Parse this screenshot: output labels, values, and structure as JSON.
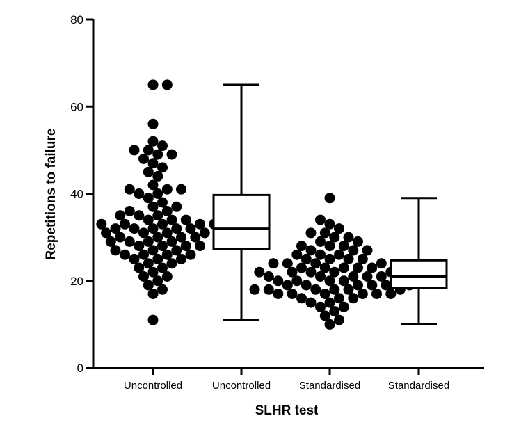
{
  "chart_data": {
    "type": "scatter",
    "xlabel": "SLHR test",
    "ylabel": "Repetitions to failure",
    "ylim": [
      0,
      80
    ],
    "yticks": [
      0,
      20,
      40,
      60,
      80
    ],
    "grid": false,
    "categories": [
      "Uncontrolled",
      "Uncontrolled",
      "Standardised",
      "Standardised"
    ],
    "colors": {
      "ink": "#000000",
      "background": "#ffffff"
    },
    "groups": [
      {
        "category": "Uncontrolled",
        "kind": "dot",
        "values": [
          65,
          65,
          56,
          52,
          51,
          50,
          50,
          49,
          49,
          48,
          47,
          46,
          45,
          44,
          42,
          41,
          41,
          41,
          40,
          40,
          39,
          38,
          37,
          37,
          36,
          36,
          35,
          35,
          35,
          34,
          34,
          34,
          33,
          33,
          33,
          33,
          33,
          32,
          32,
          32,
          32,
          32,
          31,
          31,
          31,
          31,
          30,
          30,
          30,
          30,
          29,
          29,
          29,
          29,
          28,
          28,
          28,
          28,
          27,
          27,
          27,
          26,
          26,
          26,
          26,
          25,
          25,
          25,
          24,
          24,
          23,
          23,
          22,
          21,
          21,
          20,
          19,
          18,
          17,
          11
        ]
      },
      {
        "category": "Uncontrolled",
        "kind": "box",
        "min": 11,
        "q1": 27.3,
        "median": 32,
        "q3": 39.7,
        "max": 65
      },
      {
        "category": "Standardised",
        "kind": "dot",
        "values": [
          39,
          34,
          33,
          32,
          31,
          31,
          30,
          30,
          29,
          29,
          28,
          28,
          28,
          27,
          27,
          27,
          26,
          26,
          26,
          25,
          25,
          25,
          25,
          24,
          24,
          24,
          24,
          23,
          23,
          23,
          23,
          23,
          22,
          22,
          22,
          22,
          22,
          21,
          21,
          21,
          21,
          21,
          21,
          20,
          20,
          20,
          20,
          20,
          19,
          19,
          19,
          19,
          19,
          19,
          18,
          18,
          18,
          18,
          18,
          18,
          17,
          17,
          17,
          17,
          17,
          17,
          16,
          16,
          16,
          15,
          15,
          14,
          14,
          13,
          12,
          11,
          10
        ]
      },
      {
        "category": "Standardised",
        "kind": "box",
        "min": 10,
        "q1": 18.3,
        "median": 21,
        "q3": 24.7,
        "max": 39
      }
    ]
  }
}
